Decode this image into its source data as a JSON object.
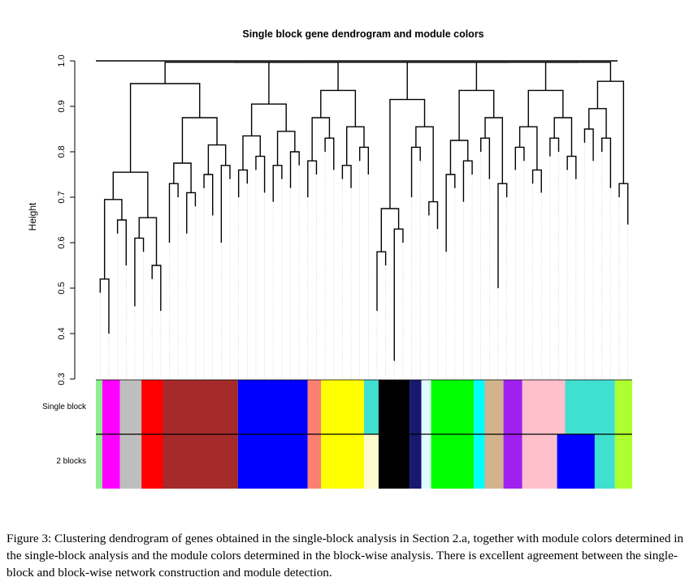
{
  "chart_data": {
    "type": "dendrogram",
    "title": "Single block gene dendrogram and module colors",
    "ylabel": "Height",
    "xlabel": "",
    "ylim": [
      0.3,
      1.0
    ],
    "yticks": [
      "0.3",
      "0.4",
      "0.5",
      "0.6",
      "0.7",
      "0.8",
      "0.9",
      "1.0"
    ],
    "color_rows": [
      "Single block",
      "2 blocks"
    ],
    "modules": [
      {
        "color": "#90ee90",
        "start": 0.0,
        "end": 0.012
      },
      {
        "color": "#ff00ff",
        "start": 0.012,
        "end": 0.045
      },
      {
        "color": "#bebebe",
        "start": 0.045,
        "end": 0.085
      },
      {
        "color": "#ff0000",
        "start": 0.085,
        "end": 0.125
      },
      {
        "color": "#a52a2a",
        "start": 0.125,
        "end": 0.265
      },
      {
        "color": "#0000ff",
        "start": 0.265,
        "end": 0.395
      },
      {
        "color": "#fa8072",
        "start": 0.395,
        "end": 0.42
      },
      {
        "color": "#ffff00",
        "start": 0.42,
        "end": 0.5
      },
      {
        "color": "#40e0d0",
        "start": 0.5,
        "end": 0.527
      },
      {
        "color": "#000000",
        "start": 0.527,
        "end": 0.585
      },
      {
        "color": "#191970",
        "start": 0.585,
        "end": 0.607
      },
      {
        "color": "#e0ffff",
        "start": 0.607,
        "end": 0.625
      },
      {
        "color": "#00ff00",
        "start": 0.625,
        "end": 0.705
      },
      {
        "color": "#00ffff",
        "start": 0.705,
        "end": 0.725
      },
      {
        "color": "#d2b48c",
        "start": 0.725,
        "end": 0.76
      },
      {
        "color": "#a020f0",
        "start": 0.76,
        "end": 0.795
      },
      {
        "color": "#ffc0cb",
        "start": 0.795,
        "end": 0.875
      },
      {
        "color": "#40e0d0",
        "start": 0.875,
        "end": 0.968
      },
      {
        "color": "#adff2f",
        "start": 0.968,
        "end": 1.0
      }
    ],
    "row2_overrides": [
      {
        "color": "#fffacd",
        "start": 0.5,
        "end": 0.527
      },
      {
        "color": "#0000ff",
        "start": 0.86,
        "end": 0.93
      }
    ],
    "tips": [
      0.49,
      0.4,
      0.62,
      0.55,
      0.46,
      0.58,
      0.52,
      0.45,
      0.6,
      0.7,
      0.62,
      0.68,
      0.72,
      0.66,
      0.6,
      0.74,
      0.7,
      0.73,
      0.76,
      0.71,
      0.69,
      0.74,
      0.72,
      0.77,
      0.7,
      0.75,
      0.8,
      0.76,
      0.74,
      0.72,
      0.78,
      0.75,
      0.45,
      0.55,
      0.34,
      0.6,
      0.7,
      0.78,
      0.66,
      0.63,
      0.58,
      0.72,
      0.69,
      0.75,
      0.8,
      0.74,
      0.5,
      0.7,
      0.76,
      0.78,
      0.73,
      0.71,
      0.79,
      0.8,
      0.76,
      0.74,
      0.82,
      0.78,
      0.8,
      0.72,
      0.7,
      0.64
    ]
  },
  "figure": {
    "caption": "Figure 3: Clustering dendrogram of genes obtained in the single-block analysis in Section 2.a, together with module colors determined in the single-block analysis and the module colors determined in the block-wise analysis. There is excellent agreement between the single-block and block-wise network construction and module detection."
  }
}
